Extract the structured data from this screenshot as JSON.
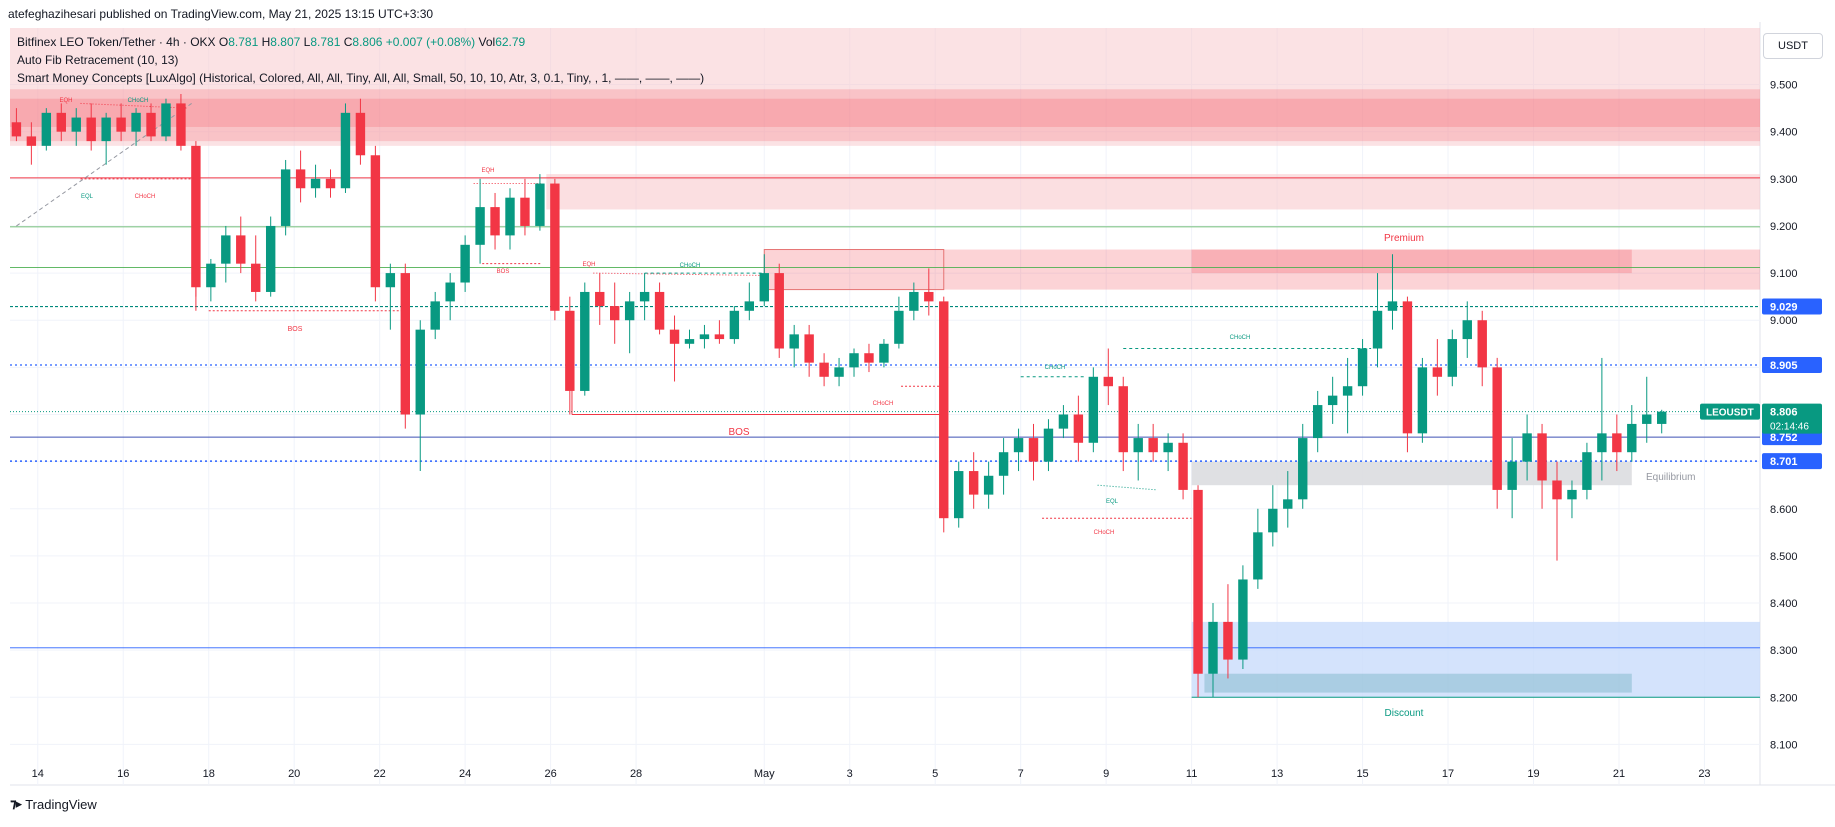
{
  "header": {
    "published_by": "atefeghazihesari published on TradingView.com, May 21, 2025 13:15 UTC+3:30"
  },
  "legend": {
    "symbol": "Bitfinex LEO Token/Tether · 4h · OKX",
    "o_label": "O",
    "o_value": "8.781",
    "h_label": "H",
    "h_value": "8.807",
    "l_label": "L",
    "l_value": "8.781",
    "c_label": "C",
    "c_value": "8.806",
    "change": "+0.007 (+0.08%)",
    "vol_label": "Vol",
    "vol_value": "62.79",
    "indicator1": "Auto Fib Retracement (10, 13)",
    "indicator2": "Smart Money Concepts [LuxAlgo] (Historical, Colored, All, All, Tiny, All, All, Small, 50, 10, 10, Atr, 3, 0.1, Tiny, , 1, ——, ——, ——)"
  },
  "currency_label": "USDT",
  "brand": "TradingView",
  "colors": {
    "up": "#089981",
    "down": "#f23645",
    "grid": "#f0f3fa",
    "premium_fill": "#f8c5c9",
    "discount_fill": "#c9dcfb",
    "equilibrium_fill": "#dcdde0",
    "price_label_bg": "#2962ff",
    "last_price_bg": "#089981"
  },
  "chart_data": {
    "type": "candlestick",
    "y_ticks": [
      "9.500",
      "9.400",
      "9.300",
      "9.200",
      "9.100",
      "9.000",
      "8.900",
      "8.800",
      "8.700",
      "8.600",
      "8.500",
      "8.400",
      "8.300",
      "8.200",
      "8.100"
    ],
    "ylim": [
      8.05,
      9.62
    ],
    "x_ticks": [
      {
        "label": "14",
        "day": 14
      },
      {
        "label": "16",
        "day": 16
      },
      {
        "label": "18",
        "day": 18
      },
      {
        "label": "20",
        "day": 20
      },
      {
        "label": "22",
        "day": 22
      },
      {
        "label": "24",
        "day": 24
      },
      {
        "label": "26",
        "day": 26
      },
      {
        "label": "28",
        "day": 28
      },
      {
        "label": "May",
        "day": 31
      },
      {
        "label": "3",
        "day": 33
      },
      {
        "label": "5",
        "day": 35
      },
      {
        "label": "7",
        "day": 37
      },
      {
        "label": "9",
        "day": 39
      },
      {
        "label": "11",
        "day": 41
      },
      {
        "label": "13",
        "day": 43
      },
      {
        "label": "15",
        "day": 45
      },
      {
        "label": "17",
        "day": 47
      },
      {
        "label": "19",
        "day": 49
      },
      {
        "label": "21",
        "day": 51
      },
      {
        "label": "23",
        "day": 53
      }
    ],
    "xlim": [
      13.35,
      54.3
    ],
    "price_labels": [
      {
        "value": 9.029,
        "text": "9.029"
      },
      {
        "value": 8.905,
        "text": "8.905"
      },
      {
        "value": 8.752,
        "text": "8.752"
      },
      {
        "value": 8.701,
        "text": "8.701"
      }
    ],
    "last_price": {
      "symbol": "LEOUSDT",
      "value": 8.806,
      "text": "8.806",
      "countdown": "02:14:46"
    },
    "zones": {
      "premium_label": "Premium",
      "equilibrium_label": "Equilibrium",
      "discount_label": "Discount"
    },
    "structure_labels": {
      "bos": "BOS",
      "choch": "CHoCH",
      "eqh": "EQH",
      "eql": "EQL"
    },
    "candles": [
      {
        "d": 13.5,
        "o": 9.42,
        "h": 9.45,
        "l": 9.38,
        "c": 9.39
      },
      {
        "d": 13.85,
        "o": 9.39,
        "h": 9.42,
        "l": 9.33,
        "c": 9.37
      },
      {
        "d": 14.2,
        "o": 9.37,
        "h": 9.45,
        "l": 9.36,
        "c": 9.44
      },
      {
        "d": 14.55,
        "o": 9.44,
        "h": 9.46,
        "l": 9.38,
        "c": 9.4
      },
      {
        "d": 14.9,
        "o": 9.4,
        "h": 9.45,
        "l": 9.37,
        "c": 9.43
      },
      {
        "d": 15.25,
        "o": 9.43,
        "h": 9.46,
        "l": 9.36,
        "c": 9.38
      },
      {
        "d": 15.6,
        "o": 9.38,
        "h": 9.44,
        "l": 9.33,
        "c": 9.43
      },
      {
        "d": 15.95,
        "o": 9.43,
        "h": 9.46,
        "l": 9.38,
        "c": 9.4
      },
      {
        "d": 16.3,
        "o": 9.4,
        "h": 9.45,
        "l": 9.37,
        "c": 9.44
      },
      {
        "d": 16.65,
        "o": 9.44,
        "h": 9.46,
        "l": 9.38,
        "c": 9.39
      },
      {
        "d": 17.0,
        "o": 9.39,
        "h": 9.47,
        "l": 9.38,
        "c": 9.46
      },
      {
        "d": 17.35,
        "o": 9.46,
        "h": 9.48,
        "l": 9.36,
        "c": 9.37
      },
      {
        "d": 17.7,
        "o": 9.37,
        "h": 9.38,
        "l": 9.05,
        "c": 9.07
      },
      {
        "d": 18.05,
        "o": 9.07,
        "h": 9.13,
        "l": 9.04,
        "c": 9.12
      },
      {
        "d": 18.4,
        "o": 9.12,
        "h": 9.2,
        "l": 9.08,
        "c": 9.18
      },
      {
        "d": 18.75,
        "o": 9.18,
        "h": 9.22,
        "l": 9.1,
        "c": 9.12
      },
      {
        "d": 19.1,
        "o": 9.12,
        "h": 9.18,
        "l": 9.04,
        "c": 9.06
      },
      {
        "d": 19.45,
        "o": 9.06,
        "h": 9.22,
        "l": 9.05,
        "c": 9.2
      },
      {
        "d": 19.8,
        "o": 9.2,
        "h": 9.34,
        "l": 9.18,
        "c": 9.32
      },
      {
        "d": 20.15,
        "o": 9.32,
        "h": 9.36,
        "l": 9.25,
        "c": 9.28
      },
      {
        "d": 20.5,
        "o": 9.28,
        "h": 9.33,
        "l": 9.26,
        "c": 9.3
      },
      {
        "d": 20.85,
        "o": 9.3,
        "h": 9.32,
        "l": 9.26,
        "c": 9.28
      },
      {
        "d": 21.2,
        "o": 9.28,
        "h": 9.46,
        "l": 9.27,
        "c": 9.44
      },
      {
        "d": 21.55,
        "o": 9.44,
        "h": 9.47,
        "l": 9.33,
        "c": 9.35
      },
      {
        "d": 21.9,
        "o": 9.35,
        "h": 9.37,
        "l": 9.04,
        "c": 9.07
      },
      {
        "d": 22.25,
        "o": 9.07,
        "h": 9.12,
        "l": 8.98,
        "c": 9.1
      },
      {
        "d": 22.6,
        "o": 9.1,
        "h": 9.12,
        "l": 8.77,
        "c": 8.8
      },
      {
        "d": 22.95,
        "o": 8.8,
        "h": 9.0,
        "l": 8.68,
        "c": 8.98
      },
      {
        "d": 23.3,
        "o": 8.98,
        "h": 9.06,
        "l": 8.96,
        "c": 9.04
      },
      {
        "d": 23.65,
        "o": 9.04,
        "h": 9.1,
        "l": 9.0,
        "c": 9.08
      },
      {
        "d": 24.0,
        "o": 9.08,
        "h": 9.18,
        "l": 9.06,
        "c": 9.16
      },
      {
        "d": 24.35,
        "o": 9.16,
        "h": 9.3,
        "l": 9.12,
        "c": 9.24
      },
      {
        "d": 24.7,
        "o": 9.24,
        "h": 9.27,
        "l": 9.15,
        "c": 9.18
      },
      {
        "d": 25.05,
        "o": 9.18,
        "h": 9.28,
        "l": 9.15,
        "c": 9.26
      },
      {
        "d": 25.4,
        "o": 9.26,
        "h": 9.3,
        "l": 9.18,
        "c": 9.2
      },
      {
        "d": 25.75,
        "o": 9.2,
        "h": 9.31,
        "l": 9.19,
        "c": 9.29
      },
      {
        "d": 26.1,
        "o": 9.29,
        "h": 9.3,
        "l": 9.0,
        "c": 9.02
      },
      {
        "d": 26.45,
        "o": 9.02,
        "h": 9.05,
        "l": 8.8,
        "c": 8.85
      },
      {
        "d": 26.8,
        "o": 8.85,
        "h": 9.08,
        "l": 8.84,
        "c": 9.06
      },
      {
        "d": 27.15,
        "o": 9.06,
        "h": 9.1,
        "l": 8.99,
        "c": 9.03
      },
      {
        "d": 27.5,
        "o": 9.03,
        "h": 9.08,
        "l": 8.95,
        "c": 9.0
      },
      {
        "d": 27.85,
        "o": 9.0,
        "h": 9.06,
        "l": 8.93,
        "c": 9.04
      },
      {
        "d": 28.2,
        "o": 9.04,
        "h": 9.1,
        "l": 9.0,
        "c": 9.06
      },
      {
        "d": 28.55,
        "o": 9.06,
        "h": 9.08,
        "l": 8.97,
        "c": 8.98
      },
      {
        "d": 28.9,
        "o": 8.98,
        "h": 9.01,
        "l": 8.87,
        "c": 8.95
      },
      {
        "d": 29.25,
        "o": 8.95,
        "h": 8.98,
        "l": 8.94,
        "c": 8.96
      },
      {
        "d": 29.6,
        "o": 8.96,
        "h": 8.99,
        "l": 8.94,
        "c": 8.97
      },
      {
        "d": 29.95,
        "o": 8.97,
        "h": 9.0,
        "l": 8.95,
        "c": 8.96
      },
      {
        "d": 30.3,
        "o": 8.96,
        "h": 9.03,
        "l": 8.95,
        "c": 9.02
      },
      {
        "d": 30.65,
        "o": 9.02,
        "h": 9.08,
        "l": 9.0,
        "c": 9.04
      },
      {
        "d": 31.0,
        "o": 9.04,
        "h": 9.14,
        "l": 9.03,
        "c": 9.1
      },
      {
        "d": 31.35,
        "o": 9.1,
        "h": 9.12,
        "l": 8.92,
        "c": 8.94
      },
      {
        "d": 31.7,
        "o": 8.94,
        "h": 8.99,
        "l": 8.9,
        "c": 8.97
      },
      {
        "d": 32.05,
        "o": 8.97,
        "h": 8.99,
        "l": 8.88,
        "c": 8.91
      },
      {
        "d": 32.4,
        "o": 8.91,
        "h": 8.93,
        "l": 8.86,
        "c": 8.88
      },
      {
        "d": 32.75,
        "o": 8.88,
        "h": 8.92,
        "l": 8.86,
        "c": 8.9
      },
      {
        "d": 33.1,
        "o": 8.9,
        "h": 8.94,
        "l": 8.88,
        "c": 8.93
      },
      {
        "d": 33.45,
        "o": 8.93,
        "h": 8.95,
        "l": 8.89,
        "c": 8.91
      },
      {
        "d": 33.8,
        "o": 8.91,
        "h": 8.96,
        "l": 8.9,
        "c": 8.95
      },
      {
        "d": 34.15,
        "o": 8.95,
        "h": 9.05,
        "l": 8.94,
        "c": 9.02
      },
      {
        "d": 34.5,
        "o": 9.02,
        "h": 9.08,
        "l": 9.0,
        "c": 9.06
      },
      {
        "d": 34.85,
        "o": 9.06,
        "h": 9.11,
        "l": 9.01,
        "c": 9.04
      },
      {
        "d": 35.2,
        "o": 9.04,
        "h": 9.05,
        "l": 8.55,
        "c": 8.58
      },
      {
        "d": 35.55,
        "o": 8.58,
        "h": 8.7,
        "l": 8.56,
        "c": 8.68
      },
      {
        "d": 35.9,
        "o": 8.68,
        "h": 8.72,
        "l": 8.6,
        "c": 8.63
      },
      {
        "d": 36.25,
        "o": 8.63,
        "h": 8.7,
        "l": 8.6,
        "c": 8.67
      },
      {
        "d": 36.6,
        "o": 8.67,
        "h": 8.75,
        "l": 8.63,
        "c": 8.72
      },
      {
        "d": 36.95,
        "o": 8.72,
        "h": 8.77,
        "l": 8.68,
        "c": 8.75
      },
      {
        "d": 37.3,
        "o": 8.75,
        "h": 8.78,
        "l": 8.66,
        "c": 8.7
      },
      {
        "d": 37.65,
        "o": 8.7,
        "h": 8.79,
        "l": 8.68,
        "c": 8.77
      },
      {
        "d": 38.0,
        "o": 8.77,
        "h": 8.82,
        "l": 8.75,
        "c": 8.8
      },
      {
        "d": 38.35,
        "o": 8.8,
        "h": 8.84,
        "l": 8.7,
        "c": 8.74
      },
      {
        "d": 38.7,
        "o": 8.74,
        "h": 8.9,
        "l": 8.72,
        "c": 8.88
      },
      {
        "d": 39.05,
        "o": 8.88,
        "h": 8.94,
        "l": 8.82,
        "c": 8.86
      },
      {
        "d": 39.4,
        "o": 8.86,
        "h": 8.88,
        "l": 8.68,
        "c": 8.72
      },
      {
        "d": 39.75,
        "o": 8.72,
        "h": 8.78,
        "l": 8.66,
        "c": 8.75
      },
      {
        "d": 40.1,
        "o": 8.75,
        "h": 8.78,
        "l": 8.7,
        "c": 8.72
      },
      {
        "d": 40.45,
        "o": 8.72,
        "h": 8.76,
        "l": 8.68,
        "c": 8.74
      },
      {
        "d": 40.8,
        "o": 8.74,
        "h": 8.76,
        "l": 8.62,
        "c": 8.64
      },
      {
        "d": 41.15,
        "o": 8.64,
        "h": 8.65,
        "l": 8.2,
        "c": 8.25
      },
      {
        "d": 41.5,
        "o": 8.25,
        "h": 8.4,
        "l": 8.2,
        "c": 8.36
      },
      {
        "d": 41.85,
        "o": 8.36,
        "h": 8.44,
        "l": 8.24,
        "c": 8.28
      },
      {
        "d": 42.2,
        "o": 8.28,
        "h": 8.48,
        "l": 8.26,
        "c": 8.45
      },
      {
        "d": 42.55,
        "o": 8.45,
        "h": 8.6,
        "l": 8.43,
        "c": 8.55
      },
      {
        "d": 42.9,
        "o": 8.55,
        "h": 8.65,
        "l": 8.52,
        "c": 8.6
      },
      {
        "d": 43.25,
        "o": 8.6,
        "h": 8.68,
        "l": 8.56,
        "c": 8.62
      },
      {
        "d": 43.6,
        "o": 8.62,
        "h": 8.78,
        "l": 8.6,
        "c": 8.75
      },
      {
        "d": 43.95,
        "o": 8.75,
        "h": 8.85,
        "l": 8.72,
        "c": 8.82
      },
      {
        "d": 44.3,
        "o": 8.82,
        "h": 8.88,
        "l": 8.78,
        "c": 8.84
      },
      {
        "d": 44.65,
        "o": 8.84,
        "h": 8.92,
        "l": 8.76,
        "c": 8.86
      },
      {
        "d": 45.0,
        "o": 8.86,
        "h": 8.96,
        "l": 8.84,
        "c": 8.94
      },
      {
        "d": 45.35,
        "o": 8.94,
        "h": 9.1,
        "l": 8.9,
        "c": 9.02
      },
      {
        "d": 45.7,
        "o": 9.02,
        "h": 9.14,
        "l": 8.98,
        "c": 9.04
      },
      {
        "d": 46.05,
        "o": 9.04,
        "h": 9.05,
        "l": 8.72,
        "c": 8.76
      },
      {
        "d": 46.4,
        "o": 8.76,
        "h": 8.92,
        "l": 8.74,
        "c": 8.9
      },
      {
        "d": 46.75,
        "o": 8.9,
        "h": 8.96,
        "l": 8.84,
        "c": 8.88
      },
      {
        "d": 47.1,
        "o": 8.88,
        "h": 8.98,
        "l": 8.86,
        "c": 8.96
      },
      {
        "d": 47.45,
        "o": 8.96,
        "h": 9.04,
        "l": 8.92,
        "c": 9.0
      },
      {
        "d": 47.8,
        "o": 9.0,
        "h": 9.02,
        "l": 8.86,
        "c": 8.9
      },
      {
        "d": 48.15,
        "o": 8.9,
        "h": 8.92,
        "l": 8.6,
        "c": 8.64
      },
      {
        "d": 48.5,
        "o": 8.64,
        "h": 8.75,
        "l": 8.58,
        "c": 8.7
      },
      {
        "d": 48.85,
        "o": 8.7,
        "h": 8.8,
        "l": 8.66,
        "c": 8.76
      },
      {
        "d": 49.2,
        "o": 8.76,
        "h": 8.78,
        "l": 8.6,
        "c": 8.66
      },
      {
        "d": 49.55,
        "o": 8.66,
        "h": 8.7,
        "l": 8.49,
        "c": 8.62
      },
      {
        "d": 49.9,
        "o": 8.62,
        "h": 8.66,
        "l": 8.58,
        "c": 8.64
      },
      {
        "d": 50.25,
        "o": 8.64,
        "h": 8.74,
        "l": 8.62,
        "c": 8.72
      },
      {
        "d": 50.6,
        "o": 8.72,
        "h": 8.92,
        "l": 8.66,
        "c": 8.76
      },
      {
        "d": 50.95,
        "o": 8.76,
        "h": 8.8,
        "l": 8.68,
        "c": 8.72
      },
      {
        "d": 51.3,
        "o": 8.72,
        "h": 8.82,
        "l": 8.7,
        "c": 8.78
      },
      {
        "d": 51.65,
        "o": 8.78,
        "h": 8.88,
        "l": 8.74,
        "c": 8.8
      },
      {
        "d": 52.0,
        "o": 8.78,
        "h": 8.81,
        "l": 8.76,
        "c": 8.806
      }
    ]
  }
}
